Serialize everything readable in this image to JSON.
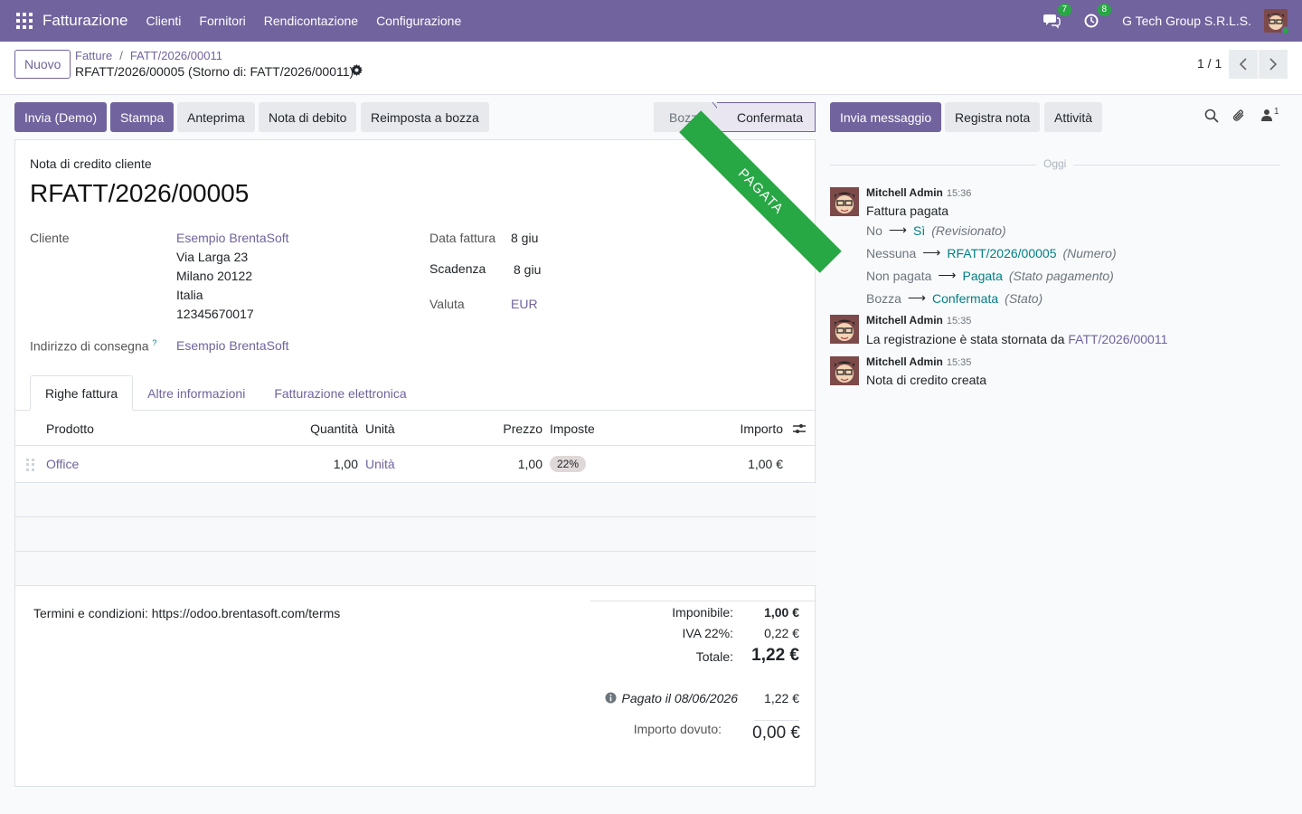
{
  "navbar": {
    "app_name": "Fatturazione",
    "menu": [
      "Clienti",
      "Fornitori",
      "Rendicontazione",
      "Configurazione"
    ],
    "messages_count": "7",
    "activities_count": "8",
    "company": "G Tech Group S.R.L.S."
  },
  "control": {
    "new_label": "Nuovo",
    "breadcrumb": [
      "Fatture",
      "FATT/2026/00011"
    ],
    "record_title": "RFATT/2026/00005 (Storno di: FATT/2026/00011)",
    "pager": "1 / 1"
  },
  "actions": {
    "send": "Invia (Demo)",
    "print": "Stampa",
    "preview": "Anteprima",
    "debit_note": "Nota di debito",
    "reset_draft": "Reimposta a bozza"
  },
  "status": {
    "stages": [
      "Bozza",
      "Confermata"
    ],
    "current": "Confermata"
  },
  "invoice": {
    "ribbon": "PAGATA",
    "type": "Nota di credito cliente",
    "name": "RFATT/2026/00005",
    "customer_label": "Cliente",
    "customer_name": "Esempio BrentaSoft",
    "address_lines": [
      "Via Larga 23",
      "Milano 20122",
      "Italia",
      "12345670017"
    ],
    "delivery_label": "Indirizzo di consegna",
    "delivery_help": "?",
    "delivery_value": "Esempio BrentaSoft",
    "date_label": "Data fattura",
    "date_value": "8 giu",
    "due_label": "Scadenza",
    "due_value": "8 giu",
    "currency_label": "Valuta",
    "currency_value": "EUR"
  },
  "tabs": [
    "Righe fattura",
    "Altre informazioni",
    "Fatturazione elettronica"
  ],
  "lines": {
    "headers": {
      "product": "Prodotto",
      "qty": "Quantità",
      "uom": "Unità",
      "price": "Prezzo",
      "taxes": "Imposte",
      "amount": "Importo"
    },
    "rows": [
      {
        "product": "Office",
        "qty": "1,00",
        "uom": "Unità",
        "price": "1,00",
        "tax": "22%",
        "amount": "1,00 €"
      }
    ]
  },
  "footer": {
    "terms": "Termini e condizioni: https://odoo.brentasoft.com/terms",
    "untaxed_label": "Imponibile:",
    "untaxed_value": "1,00 €",
    "vat_label": "IVA 22%:",
    "vat_value": "0,22 €",
    "total_label": "Totale:",
    "total_value": "1,22 €",
    "paid_label": "Pagato il 08/06/2026",
    "paid_value": "1,22 €",
    "due_label": "Importo dovuto:",
    "due_value": "0,00 €"
  },
  "chatter": {
    "send_message": "Invia messaggio",
    "log_note": "Registra nota",
    "activities": "Attività",
    "followers_count": "1",
    "today": "Oggi",
    "messages": [
      {
        "author": "Mitchell Admin",
        "time": "15:36",
        "body": "Fattura pagata",
        "tracking": [
          {
            "old": "No",
            "new": "Sì",
            "field": "(Revisionato)"
          },
          {
            "old": "Nessuna",
            "new": "RFATT/2026/00005",
            "field": "(Numero)"
          },
          {
            "old": "Non pagata",
            "new": "Pagata",
            "field": "(Stato pagamento)"
          },
          {
            "old": "Bozza",
            "new": "Confermata",
            "field": "(Stato)"
          }
        ]
      },
      {
        "author": "Mitchell Admin",
        "time": "15:35",
        "body_prefix": "La registrazione è stata stornata da",
        "body_link": "FATT/2026/00011"
      },
      {
        "author": "Mitchell Admin",
        "time": "15:35",
        "body": "Nota di credito creata"
      }
    ]
  }
}
